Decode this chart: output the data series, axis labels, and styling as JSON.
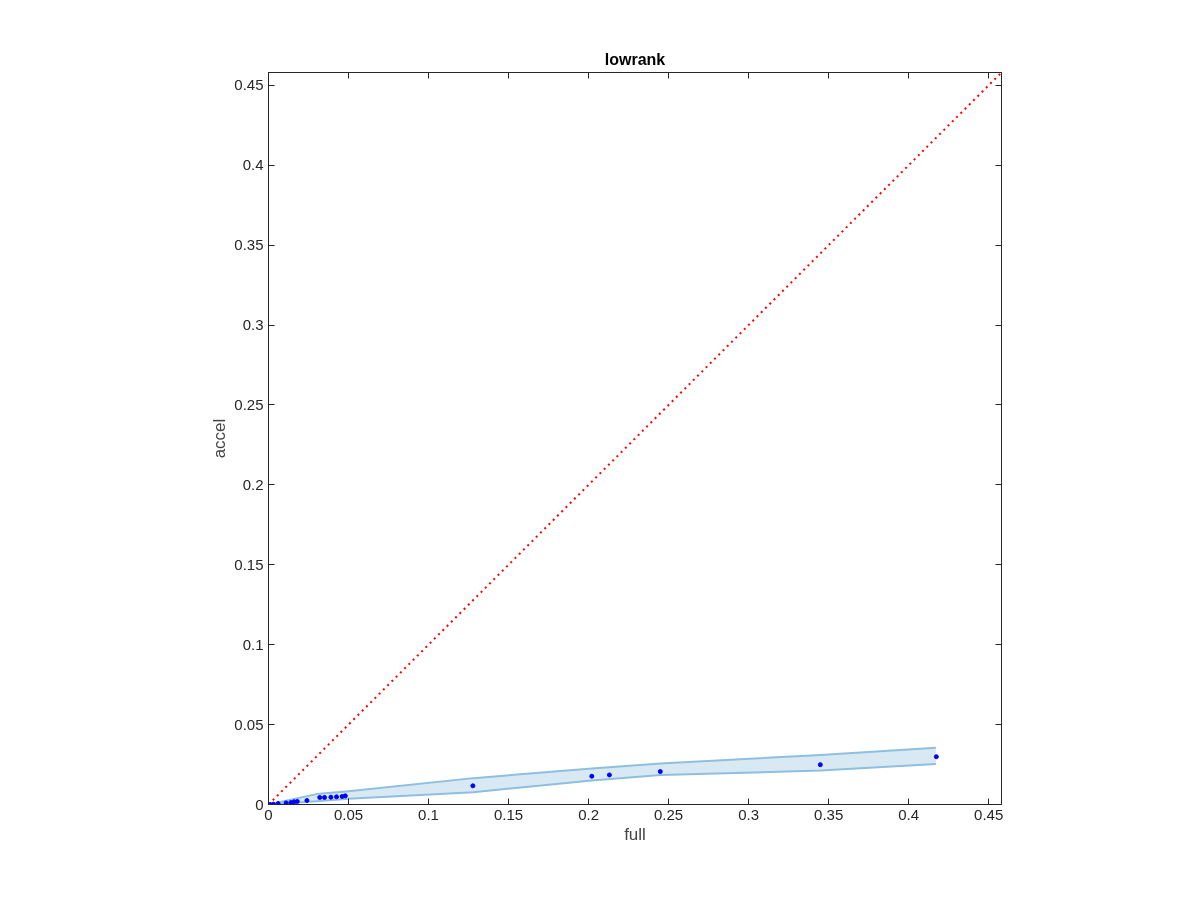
{
  "chart_data": {
    "type": "scatter",
    "title": "lowrank",
    "xlabel": "full",
    "ylabel": "accel",
    "xlim": [
      0,
      0.458
    ],
    "ylim": [
      0,
      0.458
    ],
    "xticks": [
      0,
      0.05,
      0.1,
      0.15,
      0.2,
      0.25,
      0.3,
      0.35,
      0.4,
      0.45
    ],
    "yticks": [
      0,
      0.05,
      0.1,
      0.15,
      0.2,
      0.25,
      0.3,
      0.35,
      0.4,
      0.45
    ],
    "grid": false,
    "series": [
      {
        "type": "area",
        "color": "#8fbfe0",
        "x": [
          0,
          0.03,
          0.05,
          0.128,
          0.202,
          0.245,
          0.345,
          0.417
        ],
        "values": [
          null,
          null,
          null,
          null,
          null,
          null,
          null,
          null
        ],
        "lower": [
          0,
          0.002,
          0.0036,
          0.0077,
          0.015,
          0.0185,
          0.0212,
          0.0254
        ],
        "upper": [
          0,
          0.0065,
          0.0083,
          0.0165,
          0.0225,
          0.0257,
          0.031,
          0.0355
        ]
      },
      {
        "type": "line",
        "color": "#8fbfe0",
        "line_style": "solid",
        "marker": "none",
        "x": [
          0,
          0.03,
          0.05,
          0.128,
          0.202,
          0.245,
          0.345,
          0.417
        ],
        "values": [
          0,
          0.002,
          0.0036,
          0.0077,
          0.015,
          0.0185,
          0.0212,
          0.0254
        ]
      },
      {
        "type": "line",
        "color": "#8fbfe0",
        "line_style": "solid",
        "marker": "none",
        "x": [
          0,
          0.03,
          0.05,
          0.128,
          0.202,
          0.245,
          0.345,
          0.417
        ],
        "values": [
          0,
          0.0065,
          0.0083,
          0.0165,
          0.0225,
          0.0257,
          0.031,
          0.0355
        ]
      },
      {
        "type": "line",
        "color": "#ff0000",
        "line_style": "dotted",
        "marker": "none",
        "x": [
          0,
          0.458
        ],
        "values": [
          0,
          0.458
        ]
      },
      {
        "type": "scatter",
        "color": "#0000ff",
        "marker": "circle",
        "x": [
          0.001,
          0.003,
          0.006,
          0.011,
          0.014,
          0.016,
          0.018,
          0.024,
          0.032,
          0.035,
          0.039,
          0.0425,
          0.046,
          0.048,
          0.1277,
          0.202,
          0.213,
          0.2448,
          0.3448,
          0.4173
        ],
        "values": [
          0,
          0.0002,
          0.0006,
          0.001,
          0.0012,
          0.0017,
          0.0019,
          0.0025,
          0.0044,
          0.0044,
          0.0046,
          0.0048,
          0.005,
          0.0054,
          0.0117,
          0.0177,
          0.0185,
          0.0206,
          0.0249,
          0.0299
        ]
      }
    ]
  }
}
